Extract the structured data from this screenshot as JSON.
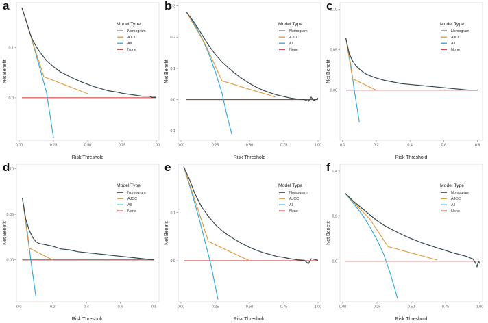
{
  "colors": {
    "Nomogram": "#33464f",
    "AJCC": "#e0963a",
    "All": "#2aa6d8",
    "None": "#c8312b"
  },
  "chart_data": [
    {
      "panel": "a",
      "type": "line",
      "xlabel": "Risk Threshold",
      "ylabel": "Net Benefit",
      "xlim": [
        -0.02,
        1.02
      ],
      "ylim": [
        -0.085,
        0.19
      ],
      "xticks": [
        0.0,
        0.25,
        0.5,
        0.75,
        1.0
      ],
      "xtick_labels": [
        "0.00",
        "0.25",
        "0.50",
        "0.75",
        "1.00"
      ],
      "yticks": [
        0.0,
        0.1
      ],
      "ytick_labels": [
        "0.0",
        "0.1"
      ],
      "legend_title": "Model Type",
      "series": [
        {
          "name": "Nomogram",
          "x": [
            0.02,
            0.05,
            0.08,
            0.1,
            0.13,
            0.16,
            0.2,
            0.25,
            0.3,
            0.35,
            0.4,
            0.45,
            0.5,
            0.55,
            0.6,
            0.65,
            0.7,
            0.75,
            0.8,
            0.85,
            0.9,
            0.95,
            0.97,
            1.0
          ],
          "y": [
            0.18,
            0.155,
            0.128,
            0.114,
            0.1,
            0.088,
            0.074,
            0.062,
            0.052,
            0.045,
            0.038,
            0.032,
            0.027,
            0.022,
            0.018,
            0.014,
            0.012,
            0.009,
            0.007,
            0.005,
            0.003,
            0.003,
            0.001,
            0.001
          ]
        },
        {
          "name": "AJCC",
          "x": [
            0.02,
            0.08,
            0.18,
            0.5
          ],
          "y": [
            0.18,
            0.127,
            0.042,
            0.008
          ]
        },
        {
          "name": "All",
          "x": [
            0.02,
            0.08,
            0.15,
            0.2,
            0.25
          ],
          "y": [
            0.18,
            0.128,
            0.06,
            0.01,
            -0.08
          ]
        },
        {
          "name": "None",
          "x": [
            0.02,
            1.0
          ],
          "y": [
            0.0,
            0.0
          ]
        }
      ]
    },
    {
      "panel": "b",
      "type": "line",
      "xlabel": "Risk Threshold",
      "ylabel": "Net Benefit",
      "xlim": [
        -0.02,
        1.02
      ],
      "ylim": [
        -0.13,
        0.31
      ],
      "xticks": [
        0.0,
        0.25,
        0.5,
        0.75,
        1.0
      ],
      "xtick_labels": [
        "0.00",
        "0.25",
        "0.50",
        "0.75",
        "1.00"
      ],
      "yticks": [
        -0.1,
        0.0,
        0.1,
        0.2,
        0.3
      ],
      "ytick_labels": [
        "-0.1",
        "0.0",
        "0.1",
        "0.2",
        "0.3"
      ],
      "legend_title": "Model Type",
      "series": [
        {
          "name": "Nomogram",
          "x": [
            0.04,
            0.1,
            0.15,
            0.2,
            0.25,
            0.3,
            0.35,
            0.4,
            0.45,
            0.5,
            0.55,
            0.6,
            0.65,
            0.7,
            0.75,
            0.8,
            0.85,
            0.9,
            0.93,
            0.95,
            0.97,
            1.0
          ],
          "y": [
            0.28,
            0.245,
            0.21,
            0.175,
            0.145,
            0.12,
            0.1,
            0.082,
            0.066,
            0.052,
            0.04,
            0.03,
            0.022,
            0.015,
            0.01,
            0.005,
            0.002,
            0.0,
            -0.005,
            0.008,
            -0.003,
            0.005
          ]
        },
        {
          "name": "AJCC",
          "x": [
            0.04,
            0.18,
            0.3,
            0.69
          ],
          "y": [
            0.28,
            0.175,
            0.06,
            0.008
          ]
        },
        {
          "name": "All",
          "x": [
            0.04,
            0.1,
            0.15,
            0.2,
            0.25,
            0.3,
            0.33,
            0.37
          ],
          "y": [
            0.28,
            0.24,
            0.2,
            0.15,
            0.09,
            0.02,
            -0.04,
            -0.11
          ]
        },
        {
          "name": "None",
          "x": [
            0.04,
            1.0
          ],
          "y": [
            0.0,
            0.0
          ]
        }
      ]
    },
    {
      "panel": "c",
      "type": "line",
      "xlabel": "Risk Threshold",
      "ylabel": "Net Benefit",
      "xlim": [
        -0.015,
        0.83
      ],
      "ylim": [
        -0.062,
        0.108
      ],
      "xticks": [
        0.0,
        0.2,
        0.4,
        0.6,
        0.8
      ],
      "xtick_labels": [
        "0.0",
        "0.2",
        "0.4",
        "0.6",
        "0.8"
      ],
      "yticks": [
        0.0,
        0.05,
        0.1
      ],
      "ytick_labels": [
        "0.00",
        "0.05",
        "0.10"
      ],
      "legend_title": "Model Type",
      "series": [
        {
          "name": "Nomogram",
          "x": [
            0.02,
            0.04,
            0.06,
            0.08,
            0.1,
            0.13,
            0.16,
            0.2,
            0.25,
            0.3,
            0.35,
            0.4,
            0.45,
            0.5,
            0.55,
            0.6,
            0.65,
            0.7,
            0.75,
            0.8
          ],
          "y": [
            0.064,
            0.045,
            0.036,
            0.03,
            0.026,
            0.021,
            0.018,
            0.015,
            0.012,
            0.01,
            0.008,
            0.007,
            0.006,
            0.005,
            0.004,
            0.003,
            0.002,
            0.001,
            0.0,
            0.0
          ]
        },
        {
          "name": "AJCC",
          "x": [
            0.02,
            0.06,
            0.2
          ],
          "y": [
            0.064,
            0.014,
            0.0
          ]
        },
        {
          "name": "All",
          "x": [
            0.02,
            0.05,
            0.07,
            0.1
          ],
          "y": [
            0.064,
            0.03,
            0.0,
            -0.04
          ]
        },
        {
          "name": "None",
          "x": [
            0.02,
            0.8
          ],
          "y": [
            0.0,
            0.0
          ]
        }
      ]
    },
    {
      "panel": "d",
      "type": "line",
      "xlabel": "Risk Threshold",
      "ylabel": "Net Benefit",
      "xlim": [
        -0.015,
        0.83
      ],
      "ylim": [
        -0.046,
        0.105
      ],
      "xticks": [
        0.0,
        0.2,
        0.4,
        0.6,
        0.8
      ],
      "xtick_labels": [
        "0.0",
        "0.2",
        "0.4",
        "0.6",
        "0.8"
      ],
      "yticks": [
        0.0,
        0.05,
        0.1
      ],
      "ytick_labels": [
        "0.00",
        "0.05",
        "0.10"
      ],
      "legend_title": "Model Type",
      "series": [
        {
          "name": "Nomogram",
          "x": [
            0.02,
            0.04,
            0.06,
            0.08,
            0.1,
            0.12,
            0.15,
            0.2,
            0.25,
            0.3,
            0.35,
            0.4,
            0.45,
            0.5,
            0.55,
            0.6,
            0.65,
            0.7,
            0.75,
            0.8
          ],
          "y": [
            0.068,
            0.045,
            0.033,
            0.025,
            0.02,
            0.018,
            0.017,
            0.015,
            0.012,
            0.011,
            0.009,
            0.008,
            0.007,
            0.006,
            0.005,
            0.004,
            0.003,
            0.002,
            0.001,
            0.0
          ]
        },
        {
          "name": "AJCC",
          "x": [
            0.02,
            0.06,
            0.2
          ],
          "y": [
            0.068,
            0.013,
            0.0
          ]
        },
        {
          "name": "All",
          "x": [
            0.02,
            0.05,
            0.07,
            0.1
          ],
          "y": [
            0.068,
            0.03,
            0.0,
            -0.04
          ]
        },
        {
          "name": "None",
          "x": [
            0.02,
            0.8
          ],
          "y": [
            0.0,
            0.0
          ]
        }
      ]
    },
    {
      "panel": "e",
      "type": "line",
      "xlabel": "Risk Threshold",
      "ylabel": "Net Benefit",
      "xlim": [
        -0.02,
        1.02
      ],
      "ylim": [
        -0.085,
        0.2
      ],
      "xticks": [
        0.0,
        0.25,
        0.5,
        0.75,
        1.0
      ],
      "xtick_labels": [
        "0.00",
        "0.25",
        "0.50",
        "0.75",
        "1.00"
      ],
      "yticks": [
        0.0,
        0.1
      ],
      "ytick_labels": [
        "0.0",
        "0.1"
      ],
      "legend_title": "Model Type",
      "series": [
        {
          "name": "Nomogram",
          "x": [
            0.02,
            0.06,
            0.1,
            0.15,
            0.2,
            0.25,
            0.3,
            0.35,
            0.4,
            0.45,
            0.5,
            0.55,
            0.6,
            0.65,
            0.7,
            0.75,
            0.8,
            0.85,
            0.9,
            0.93,
            0.95,
            0.97,
            1.0
          ],
          "y": [
            0.195,
            0.17,
            0.14,
            0.112,
            0.092,
            0.075,
            0.062,
            0.052,
            0.043,
            0.035,
            0.028,
            0.022,
            0.017,
            0.013,
            0.009,
            0.007,
            0.004,
            0.002,
            0.001,
            -0.006,
            0.004,
            0.003,
            0.001
          ]
        },
        {
          "name": "AJCC",
          "x": [
            0.02,
            0.12,
            0.2,
            0.5
          ],
          "y": [
            0.195,
            0.11,
            0.04,
            0.0
          ]
        },
        {
          "name": "All",
          "x": [
            0.02,
            0.08,
            0.13,
            0.18,
            0.22,
            0.27
          ],
          "y": [
            0.195,
            0.14,
            0.09,
            0.035,
            -0.01,
            -0.08
          ]
        },
        {
          "name": "None",
          "x": [
            0.02,
            1.0
          ],
          "y": [
            0.0,
            0.0
          ]
        }
      ]
    },
    {
      "panel": "f",
      "type": "line",
      "xlabel": "Risk Threshold",
      "ylabel": "Net Benefit",
      "xlim": [
        -0.02,
        1.02
      ],
      "ylim": [
        -0.18,
        0.43
      ],
      "xticks": [
        0.0,
        0.25,
        0.5,
        0.75,
        1.0
      ],
      "xtick_labels": [
        "0.00",
        "0.25",
        "0.50",
        "0.75",
        "1.00"
      ],
      "yticks": [
        0.0,
        0.2,
        0.4
      ],
      "ytick_labels": [
        "0.0",
        "0.2",
        "0.4"
      ],
      "legend_title": "Model Type",
      "series": [
        {
          "name": "Nomogram",
          "x": [
            0.02,
            0.08,
            0.13,
            0.2,
            0.25,
            0.3,
            0.35,
            0.4,
            0.45,
            0.5,
            0.55,
            0.6,
            0.65,
            0.7,
            0.75,
            0.8,
            0.85,
            0.9,
            0.93,
            0.95,
            0.97,
            0.98,
            0.99,
            1.0
          ],
          "y": [
            0.3,
            0.265,
            0.24,
            0.205,
            0.18,
            0.16,
            0.143,
            0.128,
            0.113,
            0.1,
            0.088,
            0.077,
            0.067,
            0.057,
            0.048,
            0.038,
            0.03,
            0.022,
            0.015,
            0.01,
            -0.01,
            -0.025,
            0.0,
            -0.01
          ]
        },
        {
          "name": "AJCC",
          "x": [
            0.02,
            0.2,
            0.33,
            0.69
          ],
          "y": [
            0.3,
            0.185,
            0.065,
            0.005
          ]
        },
        {
          "name": "All",
          "x": [
            0.02,
            0.1,
            0.15,
            0.2,
            0.25,
            0.3,
            0.35,
            0.4
          ],
          "y": [
            0.3,
            0.24,
            0.2,
            0.15,
            0.095,
            0.03,
            -0.06,
            -0.165
          ]
        },
        {
          "name": "None",
          "x": [
            0.02,
            1.0
          ],
          "y": [
            0.0,
            0.0
          ]
        }
      ]
    }
  ]
}
